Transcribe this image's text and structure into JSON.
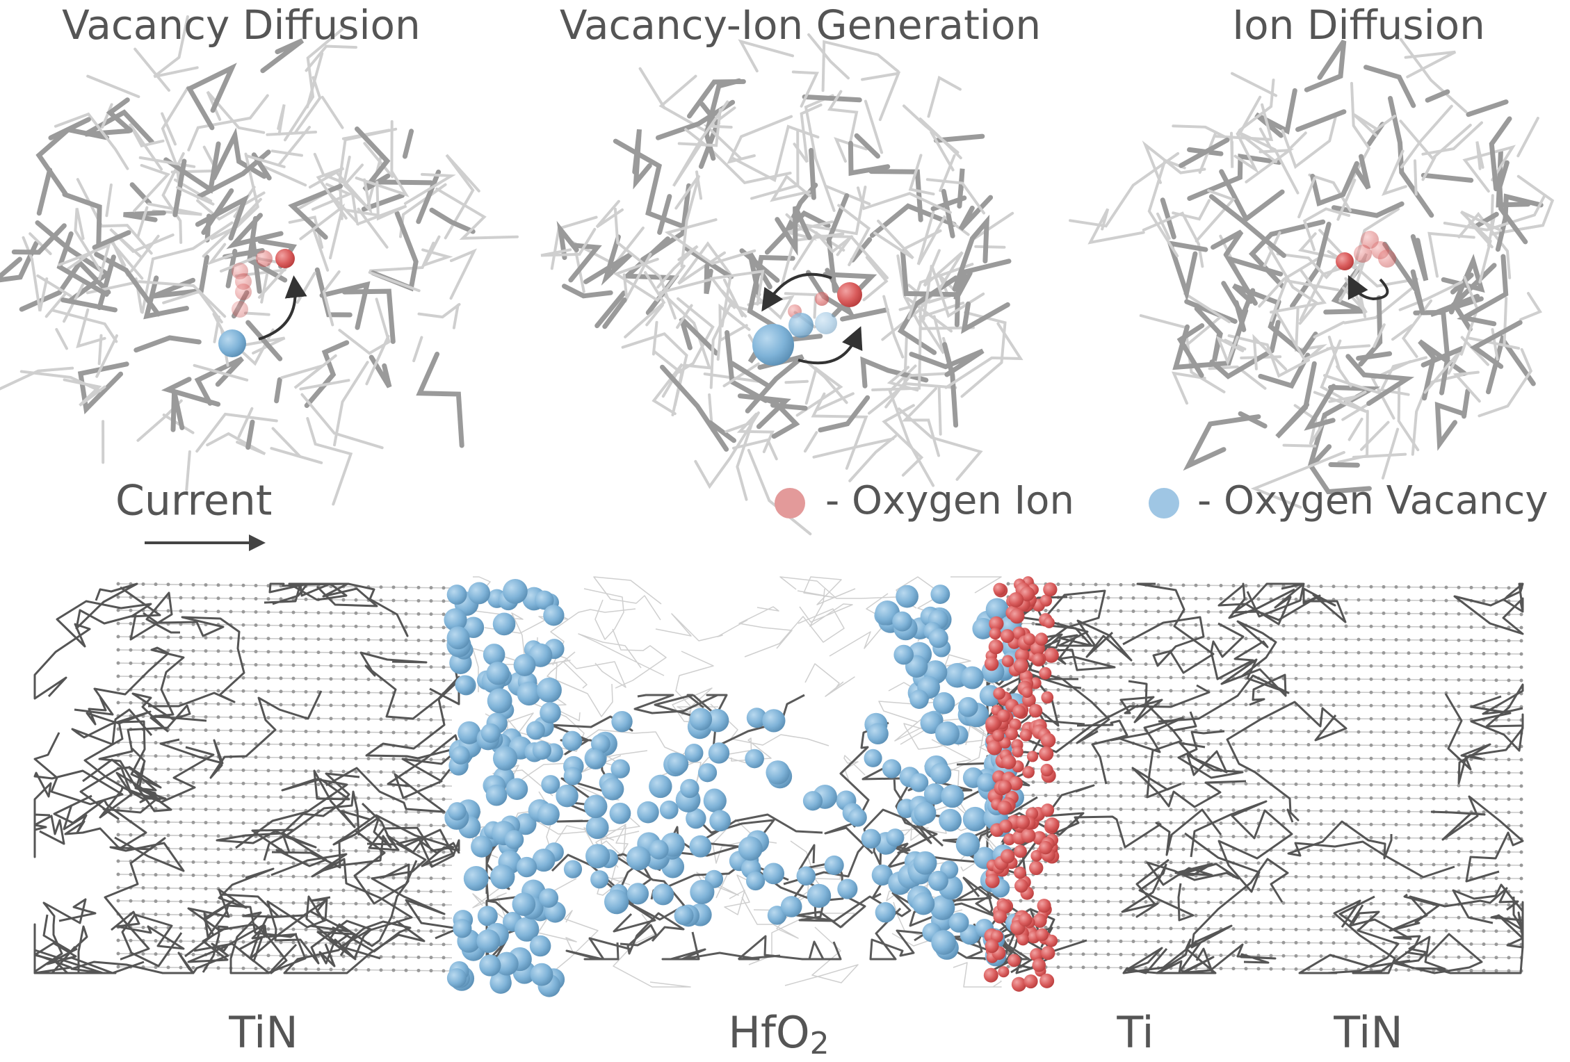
{
  "panels": [
    {
      "title": "Vacancy Diffusion"
    },
    {
      "title": "Vacancy-Ion Generation"
    },
    {
      "title": "Ion Diffusion"
    }
  ],
  "legend": [
    {
      "label": "- Oxygen Ion"
    },
    {
      "label": "- Oxygen Vacancy"
    }
  ],
  "current": {
    "label": "Current"
  },
  "regions": [
    {
      "text": "TiN"
    },
    {
      "text": "HfO",
      "subscript": "2"
    },
    {
      "text": "Ti"
    },
    {
      "text": "TiN"
    }
  ]
}
